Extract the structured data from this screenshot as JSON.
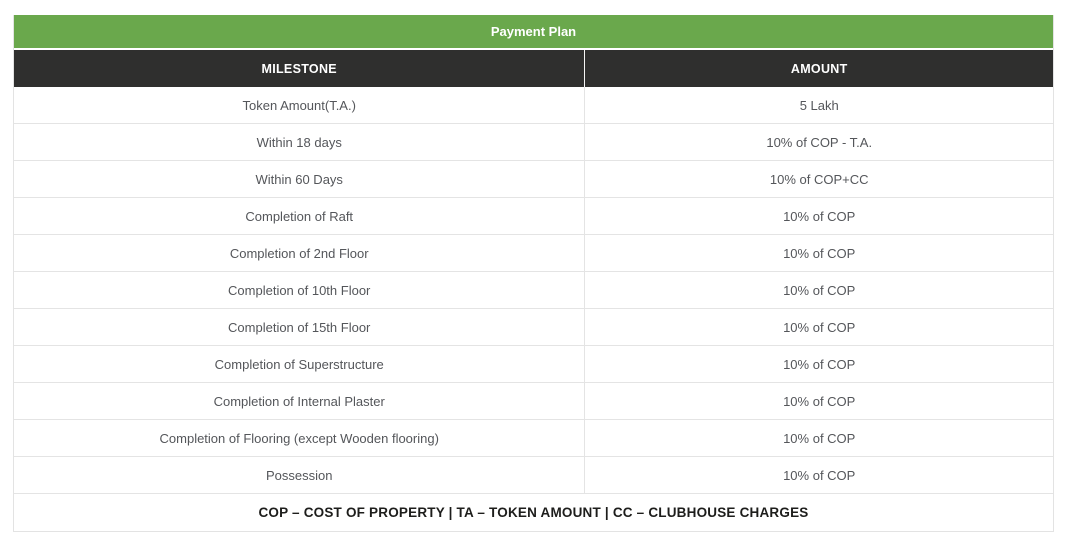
{
  "title": "Payment Plan",
  "footer": "COP – COST OF PROPERTY | TA – TOKEN AMOUNT | CC – CLUBHOUSE CHARGES",
  "colors": {
    "title_bar_green": "#6aa84c",
    "header_row_dark": "#2f2f2e",
    "body_text_gray": "#54565a",
    "row_border_gray": "#e4e4e4",
    "footer_text_dark": "#1d1d1b"
  },
  "chart_data": {
    "type": "table",
    "title": "Payment Plan",
    "columns": [
      "MILESTONE",
      "AMOUNT"
    ],
    "rows": [
      [
        "Token Amount(T.A.)",
        "5 Lakh"
      ],
      [
        "Within 18 days",
        "10% of COP - T.A."
      ],
      [
        "Within 60 Days",
        "10% of COP+CC"
      ],
      [
        "Completion of Raft",
        "10% of COP"
      ],
      [
        "Completion of 2nd Floor",
        "10% of COP"
      ],
      [
        "Completion of 10th Floor",
        "10% of COP"
      ],
      [
        "Completion of 15th Floor",
        "10% of COP"
      ],
      [
        "Completion of Superstructure",
        "10% of COP"
      ],
      [
        "Completion of Internal Plaster",
        "10% of COP"
      ],
      [
        "Completion of Flooring (except Wooden flooring)",
        "10% of COP"
      ],
      [
        "Possession",
        "10% of COP"
      ]
    ],
    "legend": "COP – COST OF PROPERTY | TA – TOKEN AMOUNT | CC – CLUBHOUSE CHARGES",
    "layout": {
      "grid": true,
      "column_split_percent": [
        55,
        45
      ]
    }
  }
}
